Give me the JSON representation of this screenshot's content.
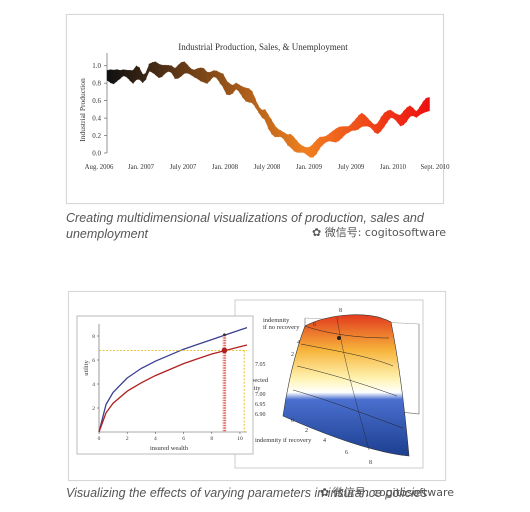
{
  "chart_data": [
    {
      "type": "line",
      "title": "Industrial Production, Sales, & Unemployment",
      "ylabel": "Industrial Production",
      "xlabel": "",
      "ylim": [
        0,
        1.1
      ],
      "yticks": [
        "0.0",
        "0.2",
        "0.4",
        "0.6",
        "0.8",
        "1.0"
      ],
      "xticks": [
        "Aug. 2006",
        "Jan. 2007",
        "July 2007",
        "Jan. 2008",
        "July 2008",
        "Jan. 2009",
        "July 2009",
        "Jan. 2010",
        "Sept. 2010"
      ],
      "color_start": "#111111",
      "color_mid": "#f08020",
      "color_end": "#ee1111",
      "series": [
        {
          "x": [
            0,
            0.5,
            1,
            1.5,
            2,
            2.5,
            3,
            3.5,
            4,
            4.5,
            5,
            5.5,
            6,
            6.5,
            7,
            7.5,
            8,
            8.5,
            9,
            9.5,
            10,
            10.5,
            11,
            11.5,
            12,
            12.5,
            13,
            13.5,
            14,
            14.5,
            15,
            15.5,
            16,
            16.5,
            17,
            17.5,
            18,
            18.5,
            19,
            19.5,
            20,
            20.5,
            21,
            21.5,
            22,
            22.5,
            23,
            23.5,
            24,
            24.5,
            25,
            25.5,
            26,
            26.5,
            27,
            27.5,
            28,
            28.5,
            29,
            29.5,
            30,
            30.5,
            31,
            31.5,
            32,
            32.5,
            33,
            33.5,
            34,
            34.5,
            35,
            35.5,
            36,
            36.5,
            37,
            37.5,
            38,
            38.5,
            39,
            39.5,
            40,
            40.5,
            41,
            41.5,
            42,
            42.5,
            43,
            43.5,
            44,
            44.5,
            45,
            45.5,
            46,
            46.5,
            47,
            47.5,
            48,
            48.5,
            49,
            49.5,
            50
          ],
          "y": [
            0.89,
            0.88,
            0.87,
            0.89,
            0.9,
            0.92,
            0.91,
            0.89,
            0.87,
            0.92,
            0.91,
            0.85,
            0.88,
            0.98,
            0.98,
            0.97,
            0.94,
            0.94,
            0.96,
            0.97,
            0.96,
            0.91,
            0.93,
            0.96,
            0.98,
            0.96,
            0.93,
            0.91,
            0.91,
            0.9,
            0.89,
            0.86,
            0.88,
            0.91,
            0.9,
            0.86,
            0.83,
            0.75,
            0.73,
            0.73,
            0.77,
            0.74,
            0.7,
            0.67,
            0.66,
            0.64,
            0.57,
            0.5,
            0.45,
            0.44,
            0.36,
            0.3,
            0.25,
            0.23,
            0.22,
            0.19,
            0.15,
            0.14,
            0.1,
            0.07,
            0.05,
            0.04,
            0.02,
            0.01,
            0.03,
            0.07,
            0.12,
            0.14,
            0.16,
            0.18,
            0.19,
            0.2,
            0.22,
            0.24,
            0.26,
            0.27,
            0.3,
            0.32,
            0.35,
            0.38,
            0.37,
            0.35,
            0.32,
            0.28,
            0.28,
            0.33,
            0.38,
            0.42,
            0.45,
            0.43,
            0.4,
            0.37,
            0.4,
            0.44,
            0.48,
            0.47,
            0.44,
            0.48,
            0.52,
            0.55,
            0.56
          ]
        }
      ]
    },
    {
      "type": "line",
      "xlabel": "insured wealth",
      "ylabel": "utility",
      "xticks": [
        "0",
        "2",
        "4",
        "6",
        "8",
        "10"
      ],
      "yticks": [
        "2",
        "4",
        "6",
        "8"
      ],
      "xlim": [
        0,
        10.5
      ],
      "ylim": [
        0,
        9
      ],
      "series": [
        {
          "color": "#3b3f8f",
          "x": [
            0,
            0.5,
            1,
            2,
            3,
            4,
            5,
            6,
            7,
            8,
            9,
            10,
            10.5
          ],
          "y": [
            0,
            2.3,
            3.3,
            4.5,
            5.3,
            5.9,
            6.4,
            6.9,
            7.3,
            7.7,
            8.1,
            8.5,
            8.7
          ]
        },
        {
          "color": "#b02020",
          "x": [
            0,
            0.5,
            1,
            2,
            3,
            4,
            5,
            6,
            7,
            8,
            9,
            10,
            10.5
          ],
          "y": [
            0,
            1.6,
            2.4,
            3.4,
            4.1,
            4.7,
            5.2,
            5.7,
            6.1,
            6.5,
            6.8,
            7.1,
            7.25
          ]
        }
      ],
      "marker": {
        "x": 8.9,
        "y": 6.8
      }
    },
    {
      "type": "surface",
      "labels": [
        "indemnity",
        "if no recovery",
        "expected",
        "utility",
        "indemnity if recovery"
      ],
      "zticks": [
        "7.05",
        "7.00",
        "6.95",
        "6.90"
      ],
      "axis_ticks": [
        "8",
        "6",
        "4",
        "2",
        "8",
        "6",
        "4",
        "2",
        "0"
      ]
    }
  ],
  "captions": {
    "first": "Creating multidimensional visualizations of production, sales and unemployment",
    "second": "Visualizing the effects of varying parameters in insurance policies"
  },
  "watermark": "微信号: cogitosoftware"
}
